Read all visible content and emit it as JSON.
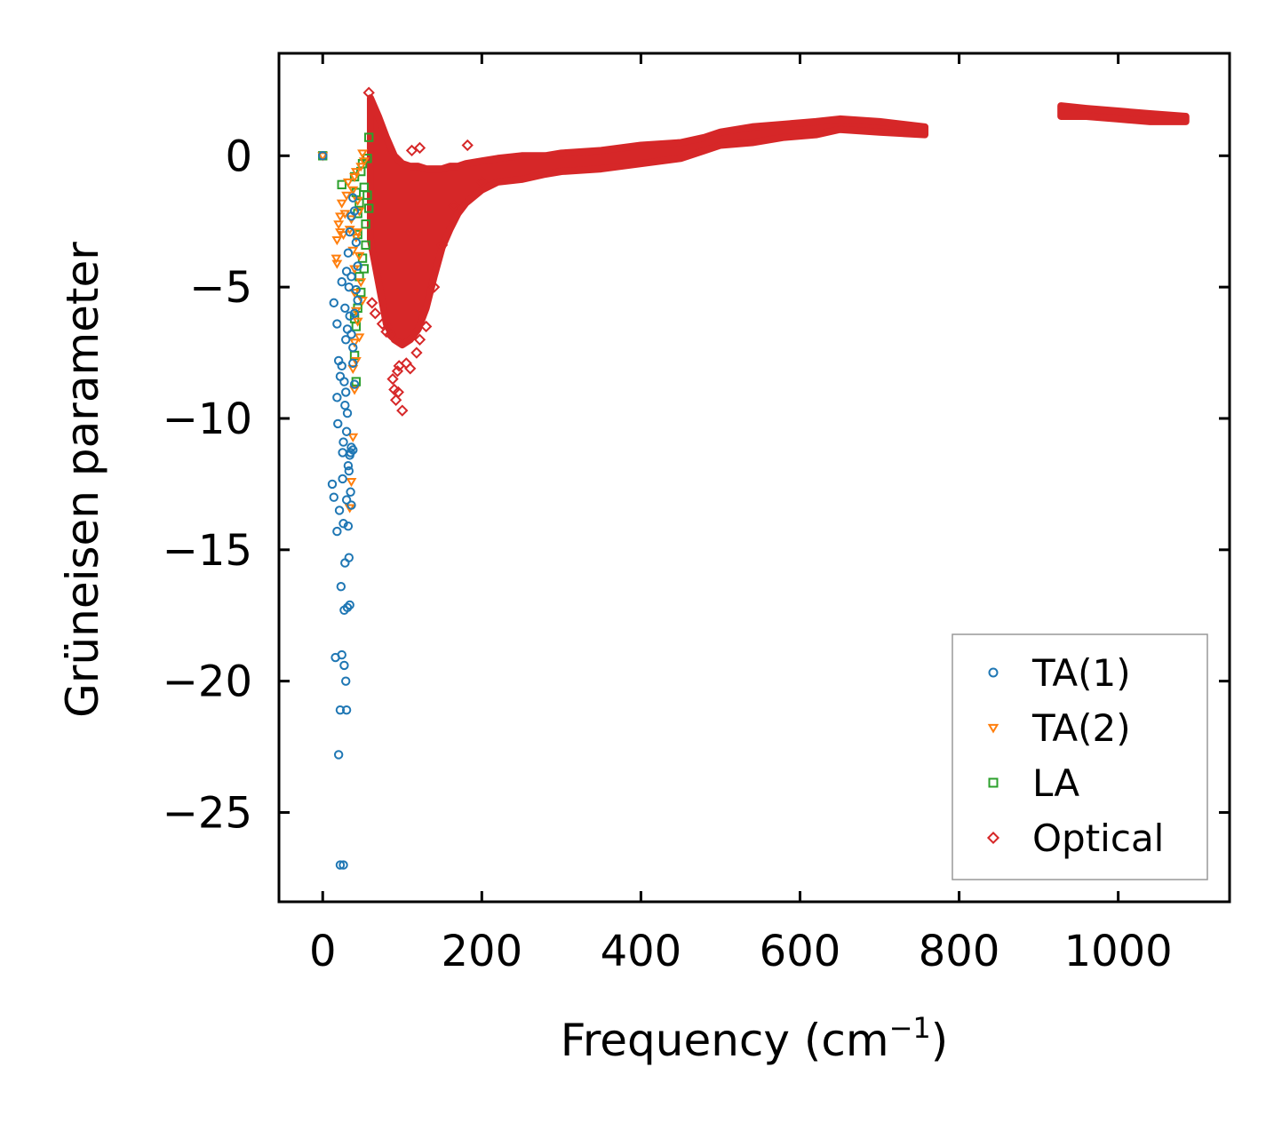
{
  "chart_data": {
    "type": "scatter",
    "title": "",
    "xlabel": "Frequency (cm",
    "xlabel_sup": "−1",
    "xlabel_suffix": ")",
    "ylabel": "Grüneisen parameter",
    "xlim": [
      -55,
      1140
    ],
    "ylim": [
      -28.4,
      3.9
    ],
    "x_ticks": [
      {
        "value": 0,
        "label": "0"
      },
      {
        "value": 200,
        "label": "200"
      },
      {
        "value": 400,
        "label": "400"
      },
      {
        "value": 600,
        "label": "600"
      },
      {
        "value": 800,
        "label": "800"
      },
      {
        "value": 1000,
        "label": "1000"
      }
    ],
    "y_ticks": [
      {
        "value": 0,
        "label": "0"
      },
      {
        "value": -5,
        "label": "−5"
      },
      {
        "value": -10,
        "label": "−10"
      },
      {
        "value": -15,
        "label": "−15"
      },
      {
        "value": -20,
        "label": "−20"
      },
      {
        "value": -25,
        "label": "−25"
      }
    ],
    "legend_position": "lower-right",
    "series": [
      {
        "name": "TA(1)",
        "marker": "circle",
        "color": "#1f77b4",
        "points": [
          [
            0,
            0
          ],
          [
            12,
            -12.5
          ],
          [
            14,
            -13.0
          ],
          [
            16,
            -19.1
          ],
          [
            18,
            -14.3
          ],
          [
            19,
            -10.2
          ],
          [
            20,
            -22.8
          ],
          [
            21,
            -13.5
          ],
          [
            22,
            -21.1
          ],
          [
            22,
            -27.0
          ],
          [
            23,
            -16.4
          ],
          [
            24,
            -19.0
          ],
          [
            25,
            -12.3
          ],
          [
            26,
            -14.0
          ],
          [
            27,
            -17.3
          ],
          [
            27,
            -19.4
          ],
          [
            28,
            -15.5
          ],
          [
            29,
            -20.0
          ],
          [
            30,
            -21.1
          ],
          [
            30,
            -13.1
          ],
          [
            31,
            -17.2
          ],
          [
            32,
            -14.1
          ],
          [
            33,
            -15.3
          ],
          [
            34,
            -17.1
          ],
          [
            35,
            -12.8
          ],
          [
            36,
            -13.3
          ],
          [
            28,
            -9.5
          ],
          [
            30,
            -10.5
          ],
          [
            32,
            -11.8
          ],
          [
            34,
            -11.4
          ],
          [
            36,
            -11.1
          ],
          [
            18,
            -9.2
          ],
          [
            20,
            -7.8
          ],
          [
            22,
            -8.4
          ],
          [
            24,
            -8.0
          ],
          [
            26,
            -10.9
          ],
          [
            25,
            -11.3
          ],
          [
            27,
            -8.6
          ],
          [
            29,
            -9.0
          ],
          [
            31,
            -9.8
          ],
          [
            33,
            -12.0
          ],
          [
            35,
            -11.3
          ],
          [
            38,
            -11.2
          ],
          [
            14,
            -5.6
          ],
          [
            18,
            -6.4
          ],
          [
            24,
            -4.8
          ],
          [
            28,
            -5.8
          ],
          [
            30,
            -4.4
          ],
          [
            32,
            -3.7
          ],
          [
            34,
            -2.9
          ],
          [
            36,
            -2.3
          ],
          [
            38,
            -1.6
          ],
          [
            40,
            -2.1
          ],
          [
            42,
            -3.3
          ],
          [
            44,
            -4.2
          ],
          [
            34,
            -6.1
          ],
          [
            36,
            -6.8
          ],
          [
            38,
            -7.3
          ],
          [
            40,
            -6.0
          ],
          [
            42,
            -5.1
          ],
          [
            44,
            -5.5
          ],
          [
            38,
            -7.9
          ],
          [
            40,
            -8.7
          ],
          [
            36,
            -4.6
          ],
          [
            33,
            -5.0
          ],
          [
            31,
            -6.6
          ],
          [
            29,
            -7.0
          ],
          [
            26,
            -27.0
          ]
        ]
      },
      {
        "name": "TA(2)",
        "marker": "triangle-down",
        "color": "#ff7f0e",
        "points": [
          [
            0,
            0
          ],
          [
            17,
            -3.9
          ],
          [
            18,
            -3.2
          ],
          [
            20,
            -2.6
          ],
          [
            22,
            -2.3
          ],
          [
            24,
            -1.8
          ],
          [
            26,
            -3.0
          ],
          [
            28,
            -2.2
          ],
          [
            30,
            -1.5
          ],
          [
            32,
            -1.0
          ],
          [
            34,
            -2.8
          ],
          [
            36,
            -2.4
          ],
          [
            38,
            -1.3
          ],
          [
            40,
            -0.8
          ],
          [
            42,
            -0.6
          ],
          [
            44,
            -1.7
          ],
          [
            46,
            -2.1
          ],
          [
            48,
            -0.4
          ],
          [
            50,
            0.1
          ],
          [
            52,
            -0.2
          ],
          [
            38,
            -3.6
          ],
          [
            40,
            -4.3
          ],
          [
            42,
            -3.1
          ],
          [
            44,
            -2.9
          ],
          [
            46,
            -3.8
          ],
          [
            40,
            -5.2
          ],
          [
            42,
            -5.9
          ],
          [
            44,
            -6.3
          ],
          [
            40,
            -7.1
          ],
          [
            42,
            -7.8
          ],
          [
            38,
            -8.1
          ],
          [
            40,
            -8.9
          ],
          [
            38,
            -10.7
          ],
          [
            34,
            -13.4
          ],
          [
            36,
            -12.4
          ],
          [
            48,
            -4.8
          ],
          [
            50,
            -5.5
          ],
          [
            46,
            -6.9
          ],
          [
            18,
            -4.1
          ],
          [
            22,
            -2.9
          ]
        ]
      },
      {
        "name": "LA",
        "marker": "square",
        "color": "#2ca02c",
        "points": [
          [
            0,
            0
          ],
          [
            24,
            -1.1
          ],
          [
            40,
            -0.8
          ],
          [
            42,
            -1.4
          ],
          [
            44,
            -2.2
          ],
          [
            46,
            -1.8
          ],
          [
            48,
            -0.6
          ],
          [
            50,
            -0.3
          ],
          [
            52,
            -1.2
          ],
          [
            54,
            -2.6
          ],
          [
            56,
            -0.1
          ],
          [
            58,
            0.7
          ],
          [
            54,
            -3.4
          ],
          [
            50,
            -3.9
          ],
          [
            46,
            -4.6
          ],
          [
            44,
            -5.8
          ],
          [
            42,
            -6.5
          ],
          [
            40,
            -7.6
          ],
          [
            42,
            -8.6
          ],
          [
            48,
            -5.2
          ],
          [
            52,
            -4.3
          ],
          [
            56,
            -1.5
          ],
          [
            58,
            -2.0
          ],
          [
            44,
            -3.0
          ],
          [
            40,
            -6.2
          ]
        ]
      },
      {
        "name": "Optical",
        "marker": "diamond",
        "color": "#d62728",
        "band": [
          [
            60,
            2.2,
            -3.2
          ],
          [
            70,
            1.5,
            -4.8
          ],
          [
            80,
            0.7,
            -6.4
          ],
          [
            90,
            0.0,
            -7.0
          ],
          [
            100,
            -0.3,
            -7.2
          ],
          [
            110,
            -0.4,
            -7.0
          ],
          [
            120,
            -0.4,
            -6.6
          ],
          [
            130,
            -0.5,
            -5.8
          ],
          [
            140,
            -0.5,
            -4.6
          ],
          [
            150,
            -0.5,
            -3.5
          ],
          [
            160,
            -0.4,
            -2.8
          ],
          [
            170,
            -0.4,
            -2.2
          ],
          [
            180,
            -0.3,
            -1.8
          ],
          [
            200,
            -0.2,
            -1.3
          ],
          [
            220,
            -0.1,
            -1.0
          ],
          [
            250,
            0.0,
            -0.9
          ],
          [
            280,
            0.0,
            -0.7
          ],
          [
            300,
            0.1,
            -0.6
          ],
          [
            350,
            0.2,
            -0.5
          ],
          [
            400,
            0.4,
            -0.3
          ],
          [
            450,
            0.5,
            -0.1
          ],
          [
            480,
            0.7,
            0.2
          ],
          [
            500,
            0.9,
            0.4
          ],
          [
            540,
            1.1,
            0.5
          ],
          [
            580,
            1.2,
            0.7
          ],
          [
            620,
            1.3,
            0.8
          ],
          [
            650,
            1.4,
            1.0
          ],
          [
            700,
            1.3,
            0.9
          ],
          [
            757,
            1.1,
            0.8
          ]
        ],
        "band2": [
          [
            928,
            1.9,
            1.5
          ],
          [
            960,
            1.8,
            1.5
          ],
          [
            1000,
            1.7,
            1.4
          ],
          [
            1040,
            1.6,
            1.3
          ],
          [
            1085,
            1.5,
            1.3
          ]
        ],
        "points": [
          [
            58,
            2.4
          ],
          [
            85,
            -6.8
          ],
          [
            88,
            -8.5
          ],
          [
            90,
            -8.9
          ],
          [
            92,
            -9.3
          ],
          [
            94,
            -8.2
          ],
          [
            96,
            -8.0
          ],
          [
            105,
            -7.9
          ],
          [
            110,
            -8.1
          ],
          [
            100,
            -9.7
          ],
          [
            112,
            0.2
          ],
          [
            122,
            0.3
          ],
          [
            182,
            0.4
          ],
          [
            165,
            -1.9
          ],
          [
            200,
            -1.0
          ],
          [
            62,
            -5.6
          ],
          [
            66,
            -6.0
          ],
          [
            75,
            -6.4
          ],
          [
            118,
            -7.5
          ],
          [
            122,
            -7.0
          ],
          [
            130,
            -6.5
          ],
          [
            140,
            -5.0
          ],
          [
            150,
            -3.4
          ],
          [
            95,
            -9.0
          ],
          [
            80,
            -6.7
          ]
        ]
      }
    ]
  }
}
